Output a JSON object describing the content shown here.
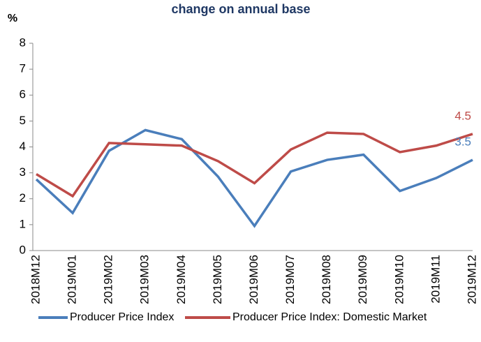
{
  "chart_data": {
    "type": "line",
    "title": "change on annual base",
    "y_label": "%",
    "categories": [
      "2018M12",
      "2019M01",
      "2019M02",
      "2019M03",
      "2019M04",
      "2019M05",
      "2019M06",
      "2019M07",
      "2019M08",
      "2019M09",
      "2019M10",
      "2019M11",
      "2019M12"
    ],
    "series": [
      {
        "name": "Producer Price Index",
        "color": "#4a7ebb",
        "values": [
          2.75,
          1.45,
          3.85,
          4.65,
          4.3,
          2.85,
          0.95,
          3.05,
          3.5,
          3.7,
          2.3,
          2.8,
          3.5
        ]
      },
      {
        "name": "Producer Price Index: Domestic Market",
        "color": "#be4b48",
        "values": [
          2.95,
          2.1,
          4.15,
          4.1,
          4.05,
          3.45,
          2.6,
          3.9,
          4.55,
          4.5,
          3.8,
          4.05,
          4.5
        ]
      }
    ],
    "ylim": [
      0,
      8
    ],
    "yticks": [
      0,
      1,
      2,
      3,
      4,
      5,
      6,
      7,
      8
    ],
    "grid": false,
    "legend": "bottom"
  }
}
